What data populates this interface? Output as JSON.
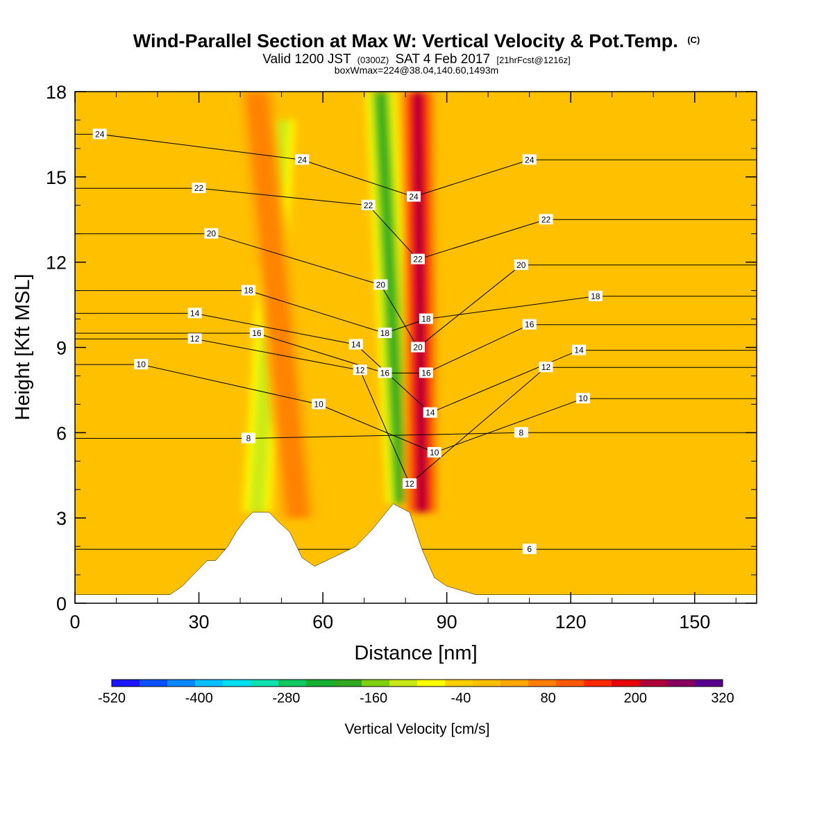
{
  "header": {
    "title_main": "Wind-Parallel Section at Max W: Vertical Velocity & Pot.Temp.",
    "title_copyright": "(C)",
    "subtitle_valid": "Valid 1200 JST",
    "subtitle_utc": "(0300Z)",
    "subtitle_date": "SAT 4 Feb 2017",
    "subtitle_forecast": "[21hrFcst@1216z]",
    "subtitle_boxmax": "boxWmax=224@38.04,140.60,1493m"
  },
  "chart_data": {
    "type": "heatmap",
    "title": "Wind-Parallel Section at Max W: Vertical Velocity & Pot.Temp.",
    "xlabel": "Distance [nm]",
    "ylabel": "Height [Kft MSL]",
    "xlim": [
      0,
      165
    ],
    "ylim": [
      0,
      18
    ],
    "x_ticks": [
      0,
      30,
      60,
      90,
      120,
      150
    ],
    "y_ticks": [
      0,
      3,
      6,
      9,
      12,
      15,
      18
    ],
    "colorbar": {
      "label": "Vertical Velocity [cm/s]",
      "tick_labels": [
        "-520",
        "-400",
        "-280",
        "-160",
        "-40",
        "80",
        "200",
        "320"
      ],
      "tick_values": [
        -520,
        -400,
        -280,
        -160,
        -40,
        80,
        200,
        320
      ],
      "levels": [
        -520,
        -480,
        -440,
        -400,
        -360,
        -320,
        -280,
        -240,
        -200,
        -160,
        -120,
        -80,
        -40,
        0,
        40,
        80,
        120,
        160,
        200,
        240,
        280,
        320
      ],
      "colors": [
        "#1a14ff",
        "#0a50ff",
        "#0a88ff",
        "#08c0ff",
        "#00e0f0",
        "#10e0b0",
        "#10c860",
        "#18b030",
        "#30a820",
        "#80d010",
        "#c8e818",
        "#ffff00",
        "#ffd000",
        "#ffc000",
        "#ffa800",
        "#ff8000",
        "#ff5a00",
        "#ff2800",
        "#e80000",
        "#b0003a",
        "#880060",
        "#5a0090"
      ]
    },
    "background_value": 0,
    "w_features": [
      {
        "kind": "downdraft",
        "x": 44,
        "y_from": 3.2,
        "y_to": 17,
        "tilt_nm": 6,
        "value": -120
      },
      {
        "kind": "updraft",
        "x": 54,
        "y_from": 3.0,
        "y_to": 18,
        "tilt_nm": -10,
        "value": 80
      },
      {
        "kind": "downdraft",
        "x": 79,
        "y_from": 3.5,
        "y_to": 18,
        "tilt_nm": -5,
        "value": -200
      },
      {
        "kind": "updraft",
        "x": 84,
        "y_from": 3.2,
        "y_to": 18,
        "tilt_nm": -1,
        "value": 224
      }
    ],
    "terrain_profile": {
      "x": [
        0,
        23,
        26,
        28,
        30,
        32,
        34,
        37,
        39,
        41,
        43,
        47,
        49,
        52,
        55,
        58,
        68,
        72,
        77,
        81,
        84,
        87,
        90,
        97,
        165
      ],
      "y": [
        0.3,
        0.3,
        0.6,
        0.9,
        1.2,
        1.5,
        1.5,
        2.0,
        2.5,
        2.9,
        3.2,
        3.2,
        2.9,
        2.5,
        1.6,
        1.3,
        2.0,
        2.6,
        3.5,
        3.2,
        1.9,
        0.9,
        0.6,
        0.3,
        0.3
      ]
    },
    "theta_contour_labels": [
      {
        "value": "24",
        "x": 6,
        "y": 16.5
      },
      {
        "value": "22",
        "x": 30,
        "y": 14.6
      },
      {
        "value": "20",
        "x": 33,
        "y": 13.0
      },
      {
        "value": "18",
        "x": 42,
        "y": 11.0
      },
      {
        "value": "16",
        "x": 44,
        "y": 9.5
      },
      {
        "value": "14",
        "x": 29,
        "y": 10.2
      },
      {
        "value": "12",
        "x": 29,
        "y": 9.3
      },
      {
        "value": "10",
        "x": 16,
        "y": 8.4
      },
      {
        "value": "8",
        "x": 42,
        "y": 5.8
      },
      {
        "value": "24",
        "x": 55,
        "y": 15.6
      },
      {
        "value": "22",
        "x": 71,
        "y": 14.0
      },
      {
        "value": "20",
        "x": 74,
        "y": 11.2
      },
      {
        "value": "18",
        "x": 75,
        "y": 9.5
      },
      {
        "value": "16",
        "x": 75,
        "y": 8.1
      },
      {
        "value": "14",
        "x": 68,
        "y": 9.1
      },
      {
        "value": "12",
        "x": 69,
        "y": 8.2
      },
      {
        "value": "10",
        "x": 59,
        "y": 7.0
      },
      {
        "value": "12",
        "x": 81,
        "y": 4.2
      },
      {
        "value": "24",
        "x": 82,
        "y": 14.3
      },
      {
        "value": "22",
        "x": 83,
        "y": 12.1
      },
      {
        "value": "20",
        "x": 83,
        "y": 9.0
      },
      {
        "value": "18",
        "x": 85,
        "y": 10.0
      },
      {
        "value": "16",
        "x": 85,
        "y": 8.1
      },
      {
        "value": "14",
        "x": 86,
        "y": 6.7
      },
      {
        "value": "10",
        "x": 87,
        "y": 5.3
      },
      {
        "value": "24",
        "x": 110,
        "y": 15.6
      },
      {
        "value": "22",
        "x": 114,
        "y": 13.5
      },
      {
        "value": "20",
        "x": 108,
        "y": 11.9
      },
      {
        "value": "18",
        "x": 126,
        "y": 10.8
      },
      {
        "value": "16",
        "x": 110,
        "y": 9.8
      },
      {
        "value": "14",
        "x": 122,
        "y": 8.9
      },
      {
        "value": "12",
        "x": 114,
        "y": 8.3
      },
      {
        "value": "10",
        "x": 123,
        "y": 7.2
      },
      {
        "value": "8",
        "x": 108,
        "y": 6.0
      },
      {
        "value": "6",
        "x": 110,
        "y": 1.9
      }
    ]
  }
}
